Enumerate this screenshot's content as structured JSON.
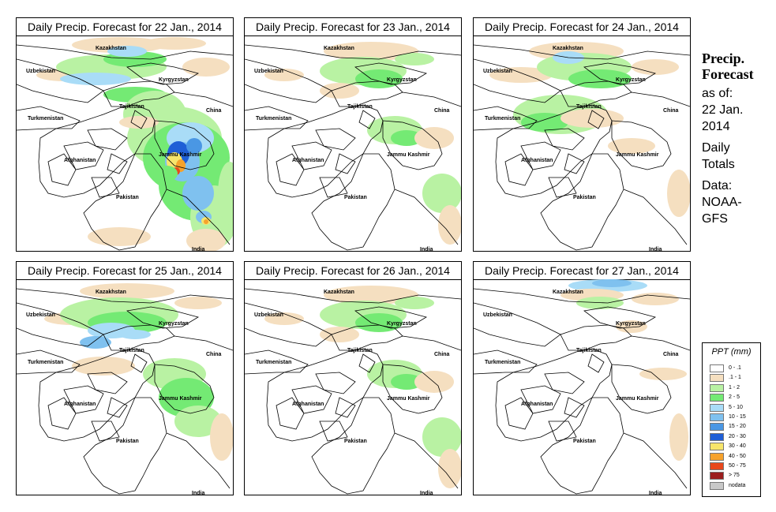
{
  "panels": [
    {
      "title": "Daily Precip. Forecast for  22 Jan., 2014",
      "pattern": "heavy"
    },
    {
      "title": "Daily Precip. Forecast for  23 Jan., 2014",
      "pattern": "light_east"
    },
    {
      "title": "Daily Precip. Forecast for  24 Jan., 2014",
      "pattern": "light_north"
    },
    {
      "title": "Daily Precip. Forecast for  25 Jan., 2014",
      "pattern": "medium"
    },
    {
      "title": "Daily Precip. Forecast for  26 Jan., 2014",
      "pattern": "light_east"
    },
    {
      "title": "Daily Precip. Forecast for  27 Jan., 2014",
      "pattern": "minimal"
    }
  ],
  "map_labels": {
    "kazakhstan": "Kazakhstan",
    "uzbekistan": "Uzbekistan",
    "kyrgyzstan": "Kyrgyzstan",
    "tajikistan": "Tajikistan",
    "turkmenistan": "Turkmenistan",
    "china": "China",
    "afghanistan": "Afghanistan",
    "jammu_kashmir": "Jammu Kashmir",
    "pakistan": "Pakistan",
    "india": "India"
  },
  "side": {
    "title_line1": "Precip.",
    "title_line2": "Forecast",
    "asof_line1": "as of:",
    "asof_line2": "22 Jan.",
    "asof_line3": "2014",
    "totals_line1": "Daily",
    "totals_line2": "Totals",
    "data_line1": "Data:",
    "data_line2": "NOAA-",
    "data_line3": "GFS"
  },
  "legend": {
    "title": "PPT (mm)",
    "items": [
      {
        "label": "0 - .1",
        "color": "#ffffff"
      },
      {
        "label": ".1 - 1",
        "color": "#f5dfc0"
      },
      {
        "label": "1 - 2",
        "color": "#b9f2a3"
      },
      {
        "label": "2 - 5",
        "color": "#74ea74"
      },
      {
        "label": "5 - 10",
        "color": "#a9dcf7"
      },
      {
        "label": "10 - 15",
        "color": "#7fc1ef"
      },
      {
        "label": "15 - 20",
        "color": "#4a97e4"
      },
      {
        "label": "20 - 30",
        "color": "#1f5fd6"
      },
      {
        "label": "30 - 40",
        "color": "#f7e56b"
      },
      {
        "label": "40 - 50",
        "color": "#f6a22c"
      },
      {
        "label": "50 - 75",
        "color": "#e8481c"
      },
      {
        "label": "> 75",
        "color": "#9b1e1e"
      },
      {
        "label": "nodata",
        "color": "#c8c8c8"
      }
    ]
  }
}
